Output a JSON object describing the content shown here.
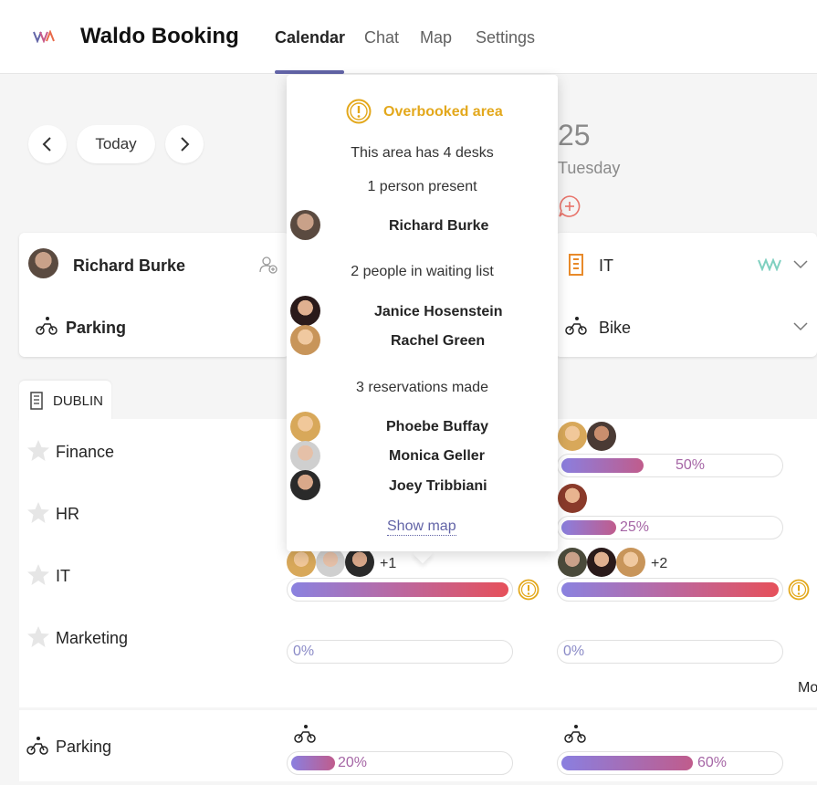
{
  "app": {
    "title": "Waldo Booking"
  },
  "nav": {
    "tabs": [
      "Calendar",
      "Chat",
      "Map",
      "Settings"
    ],
    "active": "Calendar"
  },
  "toolbar": {
    "today_label": "Today"
  },
  "date_header": {
    "day_number": "25",
    "day_name": "Tuesday"
  },
  "user_card": {
    "name": "Richard Burke",
    "parking": "Parking"
  },
  "right_card": {
    "department": "IT",
    "transport": "Bike"
  },
  "office": {
    "name": "DUBLIN"
  },
  "departments": [
    "Finance",
    "HR",
    "IT",
    "Marketing"
  ],
  "parking_row": {
    "label": "Parking"
  },
  "occupancy": {
    "finance_tue": 50,
    "hr_tue": 25,
    "it_mon": 100,
    "it_tue": 100,
    "marketing_mon": 0,
    "marketing_tue": 0,
    "parking_mon": 20,
    "parking_tue": 60
  },
  "occupancy_labels": {
    "finance_tue": "50%",
    "hr_tue": "25%",
    "marketing_mon": "0%",
    "marketing_tue": "0%",
    "parking_mon": "20%",
    "parking_tue": "60%"
  },
  "extra_counts": {
    "it_mon": "+1",
    "it_tue": "+2"
  },
  "more_label": "Mo",
  "popup": {
    "title": "Overbooked area",
    "desks_text": "This area has 4 desks",
    "present_text": "1 person present",
    "present": [
      "Richard Burke"
    ],
    "waiting_text": "2 people in waiting list",
    "waiting": [
      "Janice Hosenstein",
      "Rachel Green"
    ],
    "reservations_text": "3 reservations made",
    "reservations": [
      "Phoebe Buffay",
      "Monica Geller",
      "Joey Tribbiani"
    ],
    "show_map": "Show map"
  },
  "colors": {
    "accent": "#6264a7",
    "warning": "#e3a81c",
    "bar_start": "#8a82e0",
    "bar_end": "#e6505a"
  }
}
